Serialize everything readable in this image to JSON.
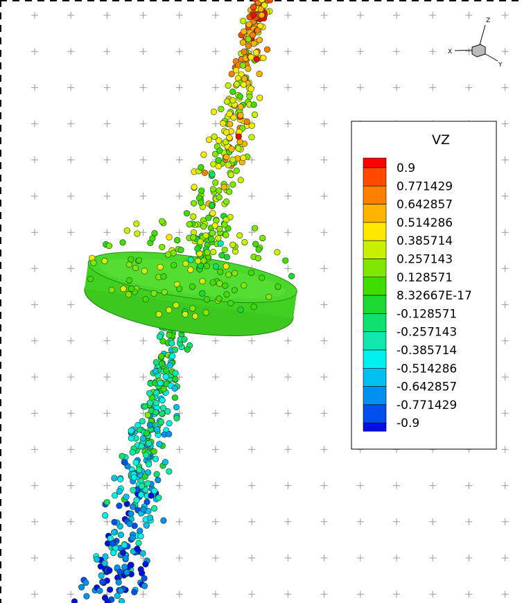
{
  "legend": {
    "title": "VZ",
    "labels": [
      "0.9",
      "0.771429",
      "0.642857",
      "0.514286",
      "0.385714",
      "0.257143",
      "0.128571",
      "8.32667E-17",
      "-0.128571",
      "-0.257143",
      "-0.385714",
      "-0.514286",
      "-0.642857",
      "-0.771429",
      "-0.9"
    ],
    "colors": [
      "#ff0000",
      "#ff4a00",
      "#ff8000",
      "#ffb400",
      "#ffe800",
      "#c8f000",
      "#80e800",
      "#40dd00",
      "#1cd830",
      "#10e070",
      "#10e8b0",
      "#00f0f0",
      "#00c0f0",
      "#0090f0",
      "#0050f0",
      "#0010e0"
    ]
  },
  "axes": {
    "x": "X",
    "y": "Y",
    "z": "Z"
  }
}
